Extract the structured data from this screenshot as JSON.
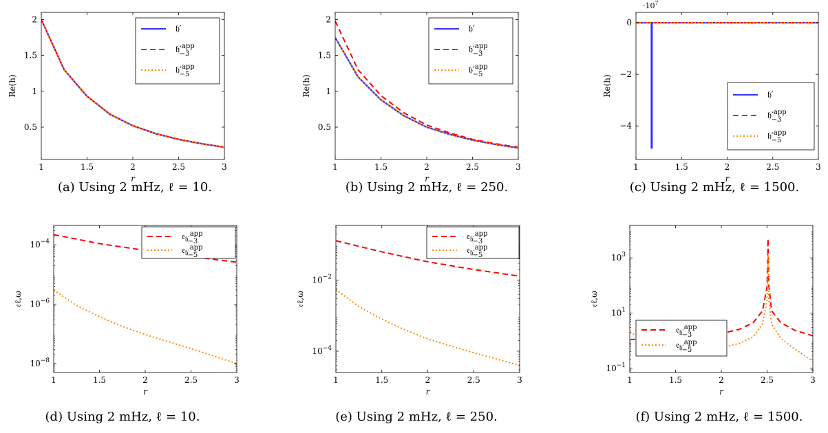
{
  "chart_data": [
    {
      "type": "line",
      "caption": "(a) Using 2 mHz, ℓ = 10.",
      "xlabel": "r",
      "ylabel": "Re(h)",
      "xlim": [
        1,
        3
      ],
      "ylim": [
        0.05,
        2.1
      ],
      "yscale": "linear",
      "xticks": [
        1,
        1.5,
        2,
        2.5,
        3
      ],
      "xtick_labels": [
        "1",
        "1.5",
        "2",
        "2.5",
        "3"
      ],
      "yticks": [
        0.5,
        1,
        1.5,
        2
      ],
      "ytick_labels": [
        "0.5",
        "1",
        "1.5",
        "2"
      ],
      "legend": "top-right",
      "series": [
        {
          "name": "𝔥′",
          "legend_sup": "",
          "legend_sub": "",
          "color": "#3333ff",
          "dash": "solid",
          "x": [
            1,
            1.25,
            1.5,
            1.75,
            2,
            2.25,
            2.5,
            2.75,
            3
          ],
          "y": [
            2.0,
            1.3,
            0.93,
            0.68,
            0.52,
            0.41,
            0.33,
            0.27,
            0.22
          ]
        },
        {
          "name": "𝔥′",
          "legend_sup": "app",
          "legend_sub": "−3",
          "color": "#ff0000",
          "dash": "dashed",
          "x": [
            1,
            1.25,
            1.5,
            1.75,
            2,
            2.25,
            2.5,
            2.75,
            3
          ],
          "y": [
            2.0,
            1.3,
            0.93,
            0.68,
            0.52,
            0.41,
            0.33,
            0.27,
            0.22
          ]
        },
        {
          "name": "𝔥′",
          "legend_sup": "app",
          "legend_sub": "−5",
          "color": "#ff8c00",
          "dash": "dotted",
          "x": [
            1,
            1.25,
            1.5,
            1.75,
            2,
            2.25,
            2.5,
            2.75,
            3
          ],
          "y": [
            2.0,
            1.3,
            0.93,
            0.68,
            0.52,
            0.41,
            0.33,
            0.27,
            0.22
          ]
        }
      ]
    },
    {
      "type": "line",
      "caption": "(b) Using 2 mHz, ℓ = 250.",
      "xlabel": "r",
      "ylabel": "Re(h)",
      "xlim": [
        1,
        3
      ],
      "ylim": [
        0.05,
        2.1
      ],
      "yscale": "linear",
      "xticks": [
        1,
        1.5,
        2,
        2.5,
        3
      ],
      "xtick_labels": [
        "1",
        "1.5",
        "2",
        "2.5",
        "3"
      ],
      "yticks": [
        0.5,
        1,
        1.5,
        2
      ],
      "ytick_labels": [
        "0.5",
        "1",
        "1.5",
        "2"
      ],
      "legend": "top-right",
      "series": [
        {
          "name": "𝔥′",
          "legend_sup": "",
          "legend_sub": "",
          "color": "#3333ff",
          "dash": "solid",
          "x": [
            1,
            1.25,
            1.5,
            1.75,
            2,
            2.25,
            2.5,
            2.75,
            3
          ],
          "y": [
            1.75,
            1.2,
            0.88,
            0.66,
            0.5,
            0.4,
            0.32,
            0.26,
            0.21
          ]
        },
        {
          "name": "𝔥′",
          "legend_sup": "app",
          "legend_sub": "−3",
          "color": "#ff0000",
          "dash": "dashed",
          "x": [
            1,
            1.25,
            1.5,
            1.75,
            2,
            2.25,
            2.5,
            2.75,
            3
          ],
          "y": [
            1.98,
            1.3,
            0.94,
            0.7,
            0.53,
            0.42,
            0.33,
            0.27,
            0.22
          ]
        },
        {
          "name": "𝔥′",
          "legend_sup": "app",
          "legend_sub": "−5",
          "color": "#ff8c00",
          "dash": "dotted",
          "x": [
            1,
            1.25,
            1.5,
            1.75,
            2,
            2.25,
            2.5,
            2.75,
            3
          ],
          "y": [
            1.75,
            1.2,
            0.88,
            0.66,
            0.5,
            0.4,
            0.32,
            0.26,
            0.21
          ]
        }
      ]
    },
    {
      "type": "line",
      "caption": "(c) Using 2 mHz, ℓ = 1500.",
      "xlabel": "r",
      "ylabel": "Re(h)",
      "xlim": [
        1,
        3
      ],
      "ylim": [
        -5.3,
        0.4
      ],
      "yscale": "linear",
      "xticks": [
        1,
        1.5,
        2,
        2.5,
        3
      ],
      "xtick_labels": [
        "1",
        "1.5",
        "2",
        "2.5",
        "3"
      ],
      "yticks": [
        -4,
        -2,
        0
      ],
      "ytick_labels": [
        "−4",
        "−2",
        "0"
      ],
      "y_exponent": "·10",
      "y_exponent_power": "7",
      "legend": "bottom-right",
      "series": [
        {
          "name": "𝔥′",
          "legend_sup": "",
          "legend_sub": "",
          "color": "#3333ff",
          "dash": "solid",
          "x": [
            1,
            1.17,
            1.17,
            1.175,
            1.175,
            1.5,
            2,
            2.5,
            3
          ],
          "y": [
            0,
            0,
            -4.85,
            -4.85,
            0,
            0,
            0,
            0,
            0
          ]
        },
        {
          "name": "𝔥′",
          "legend_sup": "app",
          "legend_sub": "−3",
          "color": "#ff0000",
          "dash": "dashed",
          "x": [
            1,
            1.5,
            2,
            2.5,
            3
          ],
          "y": [
            0,
            0,
            0,
            0,
            0
          ]
        },
        {
          "name": "𝔥′",
          "legend_sup": "app",
          "legend_sub": "−5",
          "color": "#ff8c00",
          "dash": "dotted",
          "x": [
            1,
            1.5,
            2,
            2.5,
            3
          ],
          "y": [
            0,
            0,
            0,
            0,
            0
          ]
        }
      ]
    },
    {
      "type": "line",
      "caption": "(d) Using 2 mHz, ℓ = 10.",
      "xlabel": "r",
      "ylabel": "𝔢ℓ,ω",
      "xlim": [
        1,
        3
      ],
      "ylim": [
        5e-09,
        0.00045
      ],
      "yscale": "log",
      "xticks": [
        1,
        1.5,
        2,
        2.5,
        3
      ],
      "xtick_labels": [
        "1",
        "1.5",
        "2",
        "2.5",
        "3"
      ],
      "yticks": [
        1e-08,
        1e-06,
        0.0001
      ],
      "ytick_bases": [
        "10",
        "10",
        "10"
      ],
      "ytick_exps": [
        "−8",
        "−6",
        "−4"
      ],
      "legend": "top-right",
      "series": [
        {
          "name": "𝔢",
          "legend_sub_name": "𝔥′",
          "legend_sup": "app",
          "legend_sub": "−3",
          "color": "#ff0000",
          "dash": "dashed",
          "x": [
            1,
            1.5,
            2,
            2.5,
            3
          ],
          "y": [
            0.00022,
            0.00011,
            6.5e-05,
            4e-05,
            2.6e-05
          ]
        },
        {
          "name": "𝔢",
          "legend_sub_name": "𝔥′",
          "legend_sup": "app",
          "legend_sub": "−5",
          "color": "#ff8c00",
          "dash": "dotted",
          "x": [
            1,
            1.25,
            1.5,
            1.75,
            2,
            2.25,
            2.5,
            2.75,
            3
          ],
          "y": [
            3e-06,
            9e-07,
            3.8e-07,
            1.8e-07,
            9.5e-08,
            5.5e-08,
            3.2e-08,
            1.8e-08,
            1e-08
          ]
        }
      ]
    },
    {
      "type": "line",
      "caption": "(e) Using 2 mHz, ℓ = 250.",
      "xlabel": "r",
      "ylabel": "𝔢ℓ,ω",
      "xlim": [
        1,
        3
      ],
      "ylim": [
        2.5e-05,
        0.35
      ],
      "yscale": "log",
      "xticks": [
        1,
        1.5,
        2,
        2.5,
        3
      ],
      "xtick_labels": [
        "1",
        "1.5",
        "2",
        "2.5",
        "3"
      ],
      "yticks": [
        0.0001,
        0.01
      ],
      "ytick_bases": [
        "10",
        "10"
      ],
      "ytick_exps": [
        "−4",
        "−2"
      ],
      "legend": "top-right",
      "series": [
        {
          "name": "𝔢",
          "legend_sub_name": "𝔥′",
          "legend_sup": "app",
          "legend_sub": "−3",
          "color": "#ff0000",
          "dash": "dashed",
          "x": [
            1,
            1.5,
            2,
            2.5,
            3
          ],
          "y": [
            0.13,
            0.063,
            0.033,
            0.02,
            0.013
          ]
        },
        {
          "name": "𝔢",
          "legend_sub_name": "𝔥′",
          "legend_sup": "app",
          "legend_sub": "−5",
          "color": "#ff8c00",
          "dash": "dotted",
          "x": [
            1,
            1.25,
            1.5,
            1.75,
            2,
            2.25,
            2.5,
            2.75,
            3
          ],
          "y": [
            0.0055,
            0.0018,
            0.0008,
            0.0004,
            0.00022,
            0.00014,
            9e-05,
            6e-05,
            4e-05
          ]
        }
      ]
    },
    {
      "type": "line",
      "caption": "(f) Using 2 mHz, ℓ = 1500.",
      "xlabel": "r",
      "ylabel": "𝔢ℓ,ω",
      "xlim": [
        1,
        3
      ],
      "ylim": [
        0.07,
        15000
      ],
      "yscale": "log",
      "xticks": [
        1,
        1.5,
        2,
        2.5,
        3
      ],
      "xtick_labels": [
        "1",
        "1.5",
        "2",
        "2.5",
        "3"
      ],
      "yticks": [
        0.1,
        10,
        1000
      ],
      "ytick_bases": [
        "10",
        "10",
        "10"
      ],
      "ytick_exps": [
        "−1",
        "1",
        "3"
      ],
      "legend": "bottom-left",
      "series": [
        {
          "name": "𝔢",
          "legend_sub_name": "𝔥′",
          "legend_sup": "app",
          "legend_sub": "−3",
          "color": "#ff0000",
          "dash": "dashed",
          "x": [
            1,
            1.5,
            2,
            2.2,
            2.35,
            2.45,
            2.5,
            2.51,
            2.52,
            2.55,
            2.65,
            2.8,
            3
          ],
          "y": [
            1.1,
            1.2,
            1.8,
            2.6,
            4.5,
            12,
            90,
            5000,
            90,
            12,
            4.5,
            2.4,
            1.5
          ]
        },
        {
          "name": "𝔢",
          "legend_sub_name": "𝔥′",
          "legend_sup": "app",
          "legend_sub": "−5",
          "color": "#ff8c00",
          "dash": "dotted",
          "x": [
            1,
            1.5,
            2,
            2.2,
            2.35,
            2.45,
            2.5,
            2.51,
            2.52,
            2.55,
            2.65,
            2.8,
            3
          ],
          "y": [
            2.0,
            0.4,
            0.55,
            0.8,
            1.4,
            4,
            30,
            1500,
            30,
            4,
            1.2,
            0.5,
            0.18
          ]
        }
      ]
    }
  ]
}
